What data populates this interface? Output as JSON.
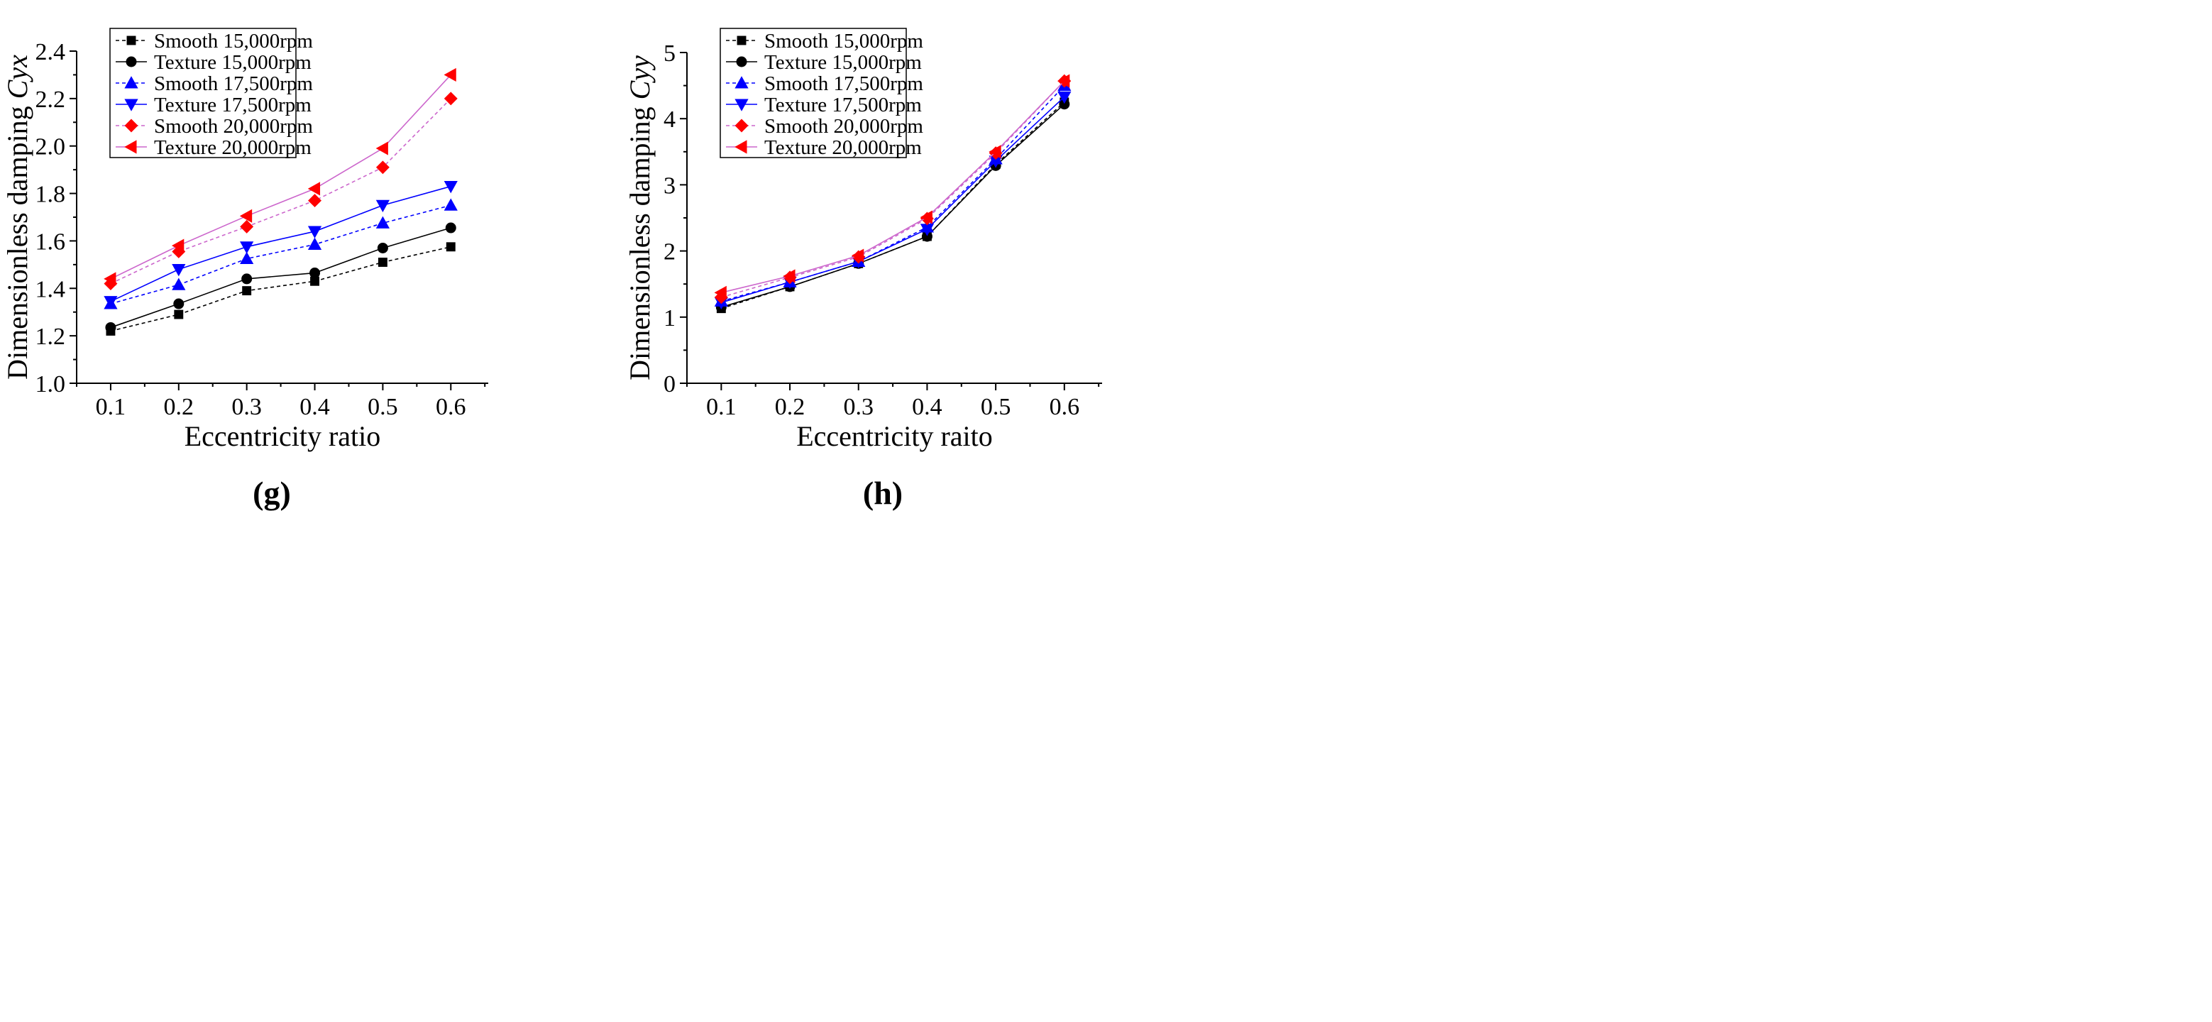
{
  "chart_data": [
    {
      "panel_label": "(g)",
      "type": "line",
      "xlabel": "Eccentricity ratio",
      "ylabel_prefix": "Dimensionless damping ",
      "ylabel_var": "Cyx",
      "x": [
        0.1,
        0.2,
        0.3,
        0.4,
        0.5,
        0.6
      ],
      "xticks": [
        "0.1",
        "0.2",
        "0.3",
        "0.4",
        "0.5",
        "0.6"
      ],
      "xlim": [
        0.05,
        0.655
      ],
      "ylim": [
        1.0,
        2.4
      ],
      "yticks": [
        1.0,
        1.2,
        1.4,
        1.6,
        1.8,
        2.0,
        2.2,
        2.4
      ],
      "ytick_labels": [
        "1.0",
        "1.2",
        "1.4",
        "1.6",
        "1.8",
        "2.0",
        "2.2",
        "2.4"
      ],
      "legend_position": "top-left",
      "series": [
        {
          "name": "Smooth 15,000rpm",
          "color": "#000000",
          "dash": "dashed",
          "marker": "square",
          "values": [
            1.22,
            1.29,
            1.39,
            1.43,
            1.51,
            1.575
          ]
        },
        {
          "name": "Texture 15,000rpm",
          "color": "#000000",
          "dash": "solid",
          "marker": "circle",
          "values": [
            1.235,
            1.335,
            1.44,
            1.465,
            1.57,
            1.655
          ]
        },
        {
          "name": "Smooth 17,500rpm",
          "color": "#0000ff",
          "dash": "dashed",
          "marker": "triangle-up",
          "values": [
            1.335,
            1.415,
            1.525,
            1.585,
            1.675,
            1.75
          ]
        },
        {
          "name": "Texture 17,500rpm",
          "color": "#0000ff",
          "dash": "solid",
          "marker": "triangle-down",
          "values": [
            1.345,
            1.48,
            1.575,
            1.64,
            1.75,
            1.83
          ]
        },
        {
          "name": "Smooth 20,000rpm",
          "color": "#ff0000",
          "line_color": "#cc66cc",
          "dash": "dashed",
          "marker": "diamond",
          "values": [
            1.42,
            1.555,
            1.66,
            1.77,
            1.91,
            2.2
          ]
        },
        {
          "name": "Texture 20,000rpm",
          "color": "#ff0000",
          "line_color": "#cc66cc",
          "dash": "solid",
          "marker": "triangle-left",
          "values": [
            1.44,
            1.58,
            1.705,
            1.82,
            1.99,
            2.3
          ]
        }
      ]
    },
    {
      "panel_label": "(h)",
      "type": "line",
      "xlabel": "Eccentricity raito",
      "ylabel_prefix": "Dimensionless damping ",
      "ylabel_var": "Cyy",
      "x": [
        0.1,
        0.2,
        0.3,
        0.4,
        0.5,
        0.6
      ],
      "xticks": [
        "0.1",
        "0.2",
        "0.3",
        "0.4",
        "0.5",
        "0.6"
      ],
      "xlim": [
        0.05,
        0.655
      ],
      "ylim": [
        0,
        5
      ],
      "yticks": [
        0,
        1,
        2,
        3,
        4,
        5
      ],
      "ytick_labels": [
        "0",
        "1",
        "2",
        "3",
        "4",
        "5"
      ],
      "legend_position": "top-left",
      "series": [
        {
          "name": "Smooth 15,000rpm",
          "color": "#000000",
          "dash": "dashed",
          "marker": "square",
          "values": [
            1.13,
            1.46,
            1.81,
            2.22,
            3.31,
            4.25
          ]
        },
        {
          "name": "Texture 15,000rpm",
          "color": "#000000",
          "dash": "solid",
          "marker": "circle",
          "values": [
            1.15,
            1.46,
            1.81,
            2.22,
            3.29,
            4.22
          ]
        },
        {
          "name": "Smooth 17,500rpm",
          "color": "#0000ff",
          "dash": "dashed",
          "marker": "triangle-up",
          "values": [
            1.24,
            1.53,
            1.84,
            2.36,
            3.39,
            4.5
          ]
        },
        {
          "name": "Texture 17,500rpm",
          "color": "#0000ff",
          "dash": "solid",
          "marker": "triangle-down",
          "values": [
            1.22,
            1.53,
            1.84,
            2.33,
            3.36,
            4.33
          ]
        },
        {
          "name": "Smooth 20,000rpm",
          "color": "#ff0000",
          "line_color": "#cc66cc",
          "dash": "dashed",
          "marker": "diamond",
          "values": [
            1.3,
            1.6,
            1.91,
            2.49,
            3.48,
            4.57
          ]
        },
        {
          "name": "Texture 20,000rpm",
          "color": "#ff0000",
          "line_color": "#cc66cc",
          "dash": "solid",
          "marker": "triangle-left",
          "values": [
            1.37,
            1.62,
            1.93,
            2.51,
            3.5,
            4.57
          ]
        }
      ]
    }
  ]
}
